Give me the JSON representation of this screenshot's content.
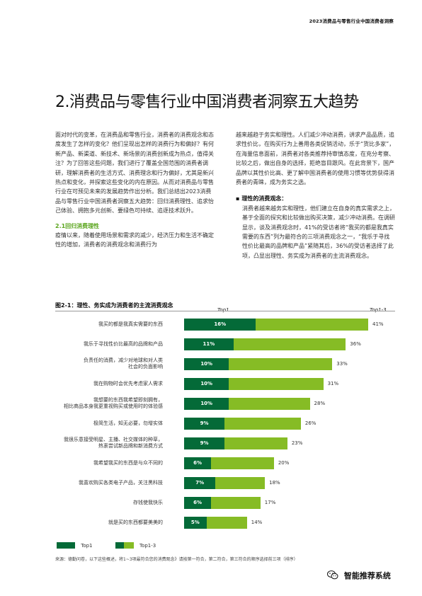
{
  "header": {
    "running_title": "2023消费品与零售行业中国消费者洞察"
  },
  "title": "2.消费品与零售行业中国消费者洞察五大趋势",
  "col1": {
    "intro": "面对时代的变革，在消费品和零售行业，消费者的消费观念和态度发生了怎样的变化？他们呈现出怎样的消费行为和偏好？有何新产品、新渠道、新技术、新场景的消费创新成为热点，值得关注？为了回答这些问题，我们进行了覆盖全国范围的消费者调研，理解消费者的生活方式、消费理念和行为偏好，尤其是新兴热点和变化，并探索这些变化的内在原因。从而对消费品与零售行业在可预见未来的发展趋势作出分析。我们总结出2023消费品与零售行业中国消费者洞察五大趋势：回归消费理性、追求怡己体验、拥抱多元创新、要绿色可持续、追逐技术跃升。",
    "section_heading": "2.1回归消费理性",
    "section_text": "疫情以来，随着使用场景和需求的减少，经济压力和生活不确定性的增加，消费者的消费观念和消费行为"
  },
  "col2": {
    "para1": "越来越趋于务实和理性。人们减少冲动消费，讲求产品品质，追求性价比，在购买行为上善用各类促销活动，乐于“货比多家”，在海量信息面前，消费者对各类推荐持审慎态度，在充分考察、比较之后，做出自身的选择，拒绝盲目跟风。在此背景下，国产品牌以其性价比高、更了解中国消费者的使用习惯等优势获得消费者的青睐，成为务实之选。",
    "bullet_heading": "理性的消费观念：",
    "bullet_text": "消费者越来越务实和理性，他们建立在自身的真实需求之上，基于全面的探究和比较做出购买决策，减少冲动消费。在调研显示，谈及消费观念时，41%的受访者将“我买的都是我真实需要的东西”列为最符合的三项消费观念之一，“我乐于寻找性价比最高的品牌和产品”紧随其后，36%的受访者选择了此项，凸显出理性、务实成为消费者的主流消费观念。"
  },
  "figure": {
    "title": "图2-1：理性、务实成为消费者的主流消费观念",
    "col_top1": "Top1",
    "col_top3": "Top1-3"
  },
  "chart_data": {
    "type": "bar",
    "orientation": "horizontal",
    "title": "图2-1：理性、务实成为消费者的主流消费观念",
    "value_unit": "%",
    "xlim": [
      0,
      45
    ],
    "categories": [
      "我买的都是我真实需要的东西",
      "我乐于寻找性价比最高的品牌和产品",
      "负责任的消费，减少对地球和对人类社会的负面影响",
      "我在购物时会优先考虑家人需求",
      "我想要的东西我希望即刻拥有，相比商品本身我更重视购买或使用时的体验感",
      "极简生活，知无必要，勿增实体",
      "我很乐意接受明星、主播、社交媒体的种草，热衷尝试新品牌和新消费方式",
      "我希望我买的东西是与众不同的",
      "我喜欢购买各类电子产品，关注黑科技",
      "存钱使我快乐",
      "就是买的东西都要美美的"
    ],
    "display_labels": [
      [
        "我买的都是我真实需要的东西"
      ],
      [
        "我乐于寻找性价比最高的品牌和产品"
      ],
      [
        "负责任的消费，减少对地球和对人类",
        "社会的负面影响"
      ],
      [
        "我在购物时会优先考虑家人需求"
      ],
      [
        "我想要的东西我希望即刻拥有，",
        "相比商品本身我更重视购买或使用时的体验感"
      ],
      [
        "极简生活，知无必要，勿增实体"
      ],
      [
        "我很乐意接受明星、主播、社交媒体的种草，",
        "热衷尝试新品牌和新消费方式"
      ],
      [
        "我希望我买的东西是与众不同的"
      ],
      [
        "我喜欢购买各类电子产品，关注黑科技"
      ],
      [
        "存钱使我快乐"
      ],
      [
        "就是买的东西都要美美的"
      ]
    ],
    "series": [
      {
        "name": "Top1",
        "values": [
          16,
          11,
          10,
          10,
          10,
          9,
          9,
          6,
          7,
          6,
          5
        ],
        "color": "#046a38"
      },
      {
        "name": "Top1-3",
        "values": [
          41,
          36,
          33,
          31,
          28,
          26,
          23,
          20,
          18,
          17,
          14
        ],
        "color": "#86bc25"
      }
    ]
  },
  "legend": {
    "top1": "Top1",
    "top3": "Top1-3",
    "top1_color": "#046a38",
    "top3_color": "#86bc25"
  },
  "source": "来源：德勤问卷，以下这些概述，将1~3项最符合您的消费观念》请按第一符合，第二符合，第三符合的顺序选择前三项（排序）",
  "watermark": {
    "icon": "wechat-icon",
    "text": "智能推荐系统"
  }
}
